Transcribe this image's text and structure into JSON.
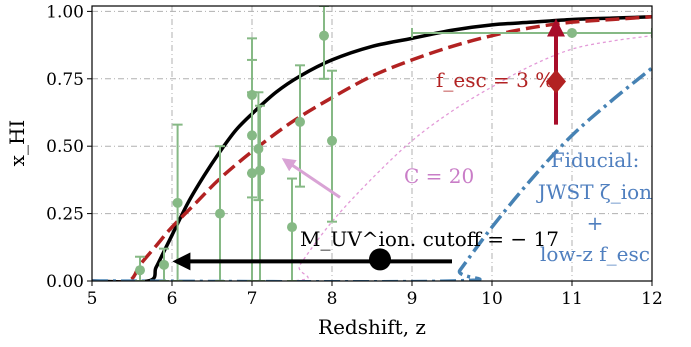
{
  "chart_data": {
    "type": "line",
    "title": "",
    "xlabel": "Redshift, z",
    "ylabel": "x_HI",
    "xlim": [
      5,
      12
    ],
    "ylim": [
      0,
      1.02
    ],
    "xticks": [
      5,
      6,
      7,
      8,
      9,
      10,
      11,
      12
    ],
    "xtick_labels": [
      "5",
      "6",
      "7",
      "8",
      "9",
      "10",
      "11",
      "12"
    ],
    "yticks": [
      0,
      0.25,
      0.5,
      0.75,
      1.0
    ],
    "ytick_labels": [
      "0.00",
      "0.25",
      "0.50",
      "0.75",
      "1.00"
    ],
    "grid": true,
    "series": [
      {
        "style": "solid",
        "color": "#000000",
        "x": [
          5.0,
          5.7,
          5.8,
          5.9,
          6.0,
          6.2,
          6.4,
          6.6,
          6.8,
          7.0,
          7.3,
          7.6,
          8.0,
          8.5,
          9.0,
          9.5,
          10.0,
          10.5,
          11.0,
          11.5,
          12.0
        ],
        "y": [
          0.0,
          0.0,
          0.05,
          0.11,
          0.17,
          0.29,
          0.39,
          0.48,
          0.56,
          0.62,
          0.7,
          0.76,
          0.82,
          0.87,
          0.9,
          0.93,
          0.95,
          0.96,
          0.97,
          0.975,
          0.98
        ]
      },
      {
        "style": "dashed",
        "color": "#b22222",
        "x": [
          5.0,
          5.45,
          5.6,
          5.8,
          6.0,
          6.3,
          6.6,
          7.0,
          7.5,
          8.0,
          8.5,
          9.0,
          9.5,
          10.0,
          10.5,
          11.0,
          11.5,
          12.0
        ],
        "y": [
          0.0,
          0.0,
          0.06,
          0.13,
          0.2,
          0.29,
          0.38,
          0.48,
          0.59,
          0.68,
          0.76,
          0.82,
          0.87,
          0.91,
          0.94,
          0.96,
          0.97,
          0.98
        ]
      },
      {
        "style": "dotted",
        "color": "#e39ad8",
        "x": [
          5.0,
          7.5,
          7.6,
          8.0,
          8.5,
          9.0,
          9.5,
          10.0,
          10.5,
          11.0,
          11.5,
          12.0
        ],
        "y": [
          0.0,
          0.0,
          0.06,
          0.22,
          0.38,
          0.52,
          0.63,
          0.72,
          0.8,
          0.86,
          0.89,
          0.91
        ]
      },
      {
        "style": "dashdot",
        "color": "#4682b4",
        "x": [
          5.0,
          9.5,
          9.6,
          10.0,
          10.5,
          11.0,
          11.5,
          12.0
        ],
        "y": [
          0.0,
          0.0,
          0.04,
          0.2,
          0.38,
          0.54,
          0.67,
          0.79
        ]
      }
    ],
    "observations": {
      "color": "#86b985",
      "points": [
        {
          "x": 5.6,
          "y": 0.04,
          "ylo": 0.0,
          "yhi": 0.09
        },
        {
          "x": 5.9,
          "y": 0.06,
          "ylo": 0.0,
          "yhi": 0.12
        },
        {
          "x": 6.07,
          "y": 0.29,
          "ylo": 0.0,
          "yhi": 0.58
        },
        {
          "x": 6.6,
          "y": 0.25,
          "ylo": 0.0,
          "yhi": 0.5
        },
        {
          "x": 7.0,
          "y": 0.69,
          "ylo": 0.4,
          "yhi": 0.9
        },
        {
          "x": 7.0,
          "y": 0.54,
          "ylo": 0.31,
          "yhi": 0.82
        },
        {
          "x": 7.0,
          "y": 0.4,
          "ylo": 0.0,
          "yhi": 0.7
        },
        {
          "x": 7.08,
          "y": 0.49,
          "ylo": 0.3,
          "yhi": 0.7
        },
        {
          "x": 7.1,
          "y": 0.41,
          "ylo": 0.0,
          "yhi": 0.65
        },
        {
          "x": 7.5,
          "y": 0.2,
          "ylo": 0.0,
          "yhi": 0.38
        },
        {
          "x": 7.6,
          "y": 0.59,
          "ylo": 0.35,
          "yhi": 0.8
        },
        {
          "x": 7.9,
          "y": 0.91,
          "ylo": 0.75,
          "yhi": 1.02
        },
        {
          "x": 8.0,
          "y": 0.52,
          "ylo": 0.22,
          "yhi": 0.78
        },
        {
          "x": 11.0,
          "y": 0.92,
          "xlo": 9.0,
          "xhi": 12.0
        }
      ]
    },
    "annotations": {
      "fesc": {
        "label": "f_esc = 3 %",
        "marker_x": 10.8,
        "marker_y": 0.74,
        "arrow_from": 0.58,
        "arrow_to": 0.96
      },
      "clumping": {
        "label": "C = 20",
        "arrow_from": [
          8.1,
          0.31
        ],
        "arrow_to": [
          7.4,
          0.45
        ]
      },
      "muv": {
        "label": "M_UV^ion. cutoff = − 17",
        "dot_x": 8.6,
        "dot_y": 0.08,
        "arrow_to_x": 6.05
      },
      "fiducial": {
        "line1": "Fiducial:",
        "line2": "JWST ζ_ion",
        "line3": "+",
        "line4": "low-z f_esc"
      }
    }
  }
}
